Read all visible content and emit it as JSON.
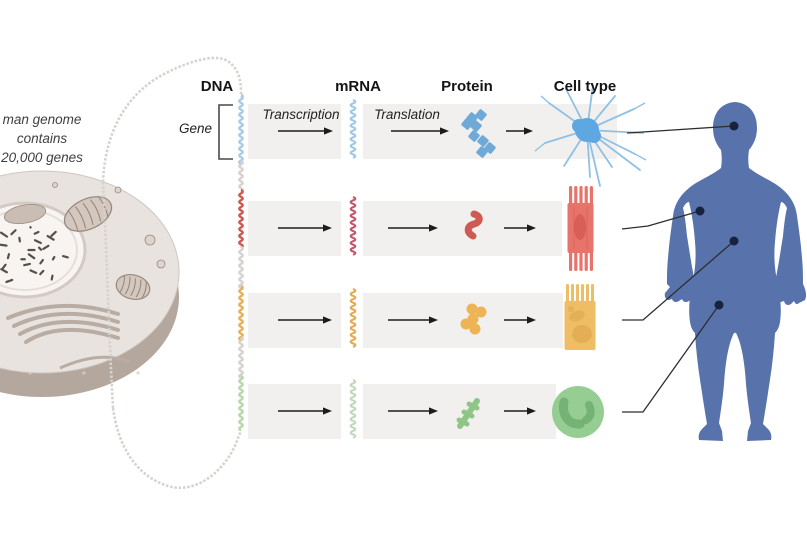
{
  "annotation": {
    "lines": [
      "man genome",
      "contains",
      "20,000 genes"
    ]
  },
  "headers": {
    "dna": "DNA",
    "mrna": "mRNA",
    "protein": "Protein",
    "cell_type": "Cell type"
  },
  "labels": {
    "gene": "Gene",
    "transcription": "Transcription",
    "translation": "Translation"
  },
  "colors": {
    "background": "#ffffff",
    "band": "#f1f0ee",
    "dna_strand_gray": "#d7d2ce",
    "arrow": "#1c1c1c",
    "connector_line": "#2e2e2e",
    "body": "#5873ac",
    "body_dot": "#17233e",
    "header_text": "#141414",
    "annotation_text": "#3f3f3f",
    "bracket": "#4a4a4a",
    "cell_light": "#e9e3df",
    "cell_dark": "#b4a79e",
    "cell_outline": "#cfc6c0",
    "nucleus": "#f7f4f1",
    "nucleus_ring": "#d4cac4",
    "organelle": "#d3c7be",
    "organelle_line": "#97897f",
    "chromatin": "#57504a"
  },
  "rows": [
    {
      "name": "neuron",
      "icon": "neuron-icon",
      "body_target": "head",
      "dna_color": "#a9cbe6",
      "mrna_color": "#9fc7e6",
      "protein_color": "#6fa9d8",
      "cell_color": "#5fa7e0",
      "cell_color_alt": "#8fc0e6"
    },
    {
      "name": "muscle",
      "icon": "muscle-cell-icon",
      "body_target": "upper-arm",
      "dna_color": "#cd5953",
      "mrna_color": "#c2566a",
      "protein_color": "#cf5a54",
      "cell_color": "#e8736b",
      "cell_color_alt": "#c94f48"
    },
    {
      "name": "intestinal",
      "icon": "intestinal-cell-icon",
      "body_target": "abdomen",
      "dna_color": "#e6b05e",
      "mrna_color": "#e3aa52",
      "protein_color": "#edb456",
      "cell_color": "#efbd63",
      "cell_color_alt": "#d9a348"
    },
    {
      "name": "white-blood-cell",
      "icon": "white-blood-cell-icon",
      "body_target": "thigh",
      "dna_color": "#b7d8ad",
      "mrna_color": "#c2d8bd",
      "protein_color": "#8fc687",
      "cell_color": "#8cc98a",
      "cell_color_alt": "#6fae6d"
    }
  ]
}
